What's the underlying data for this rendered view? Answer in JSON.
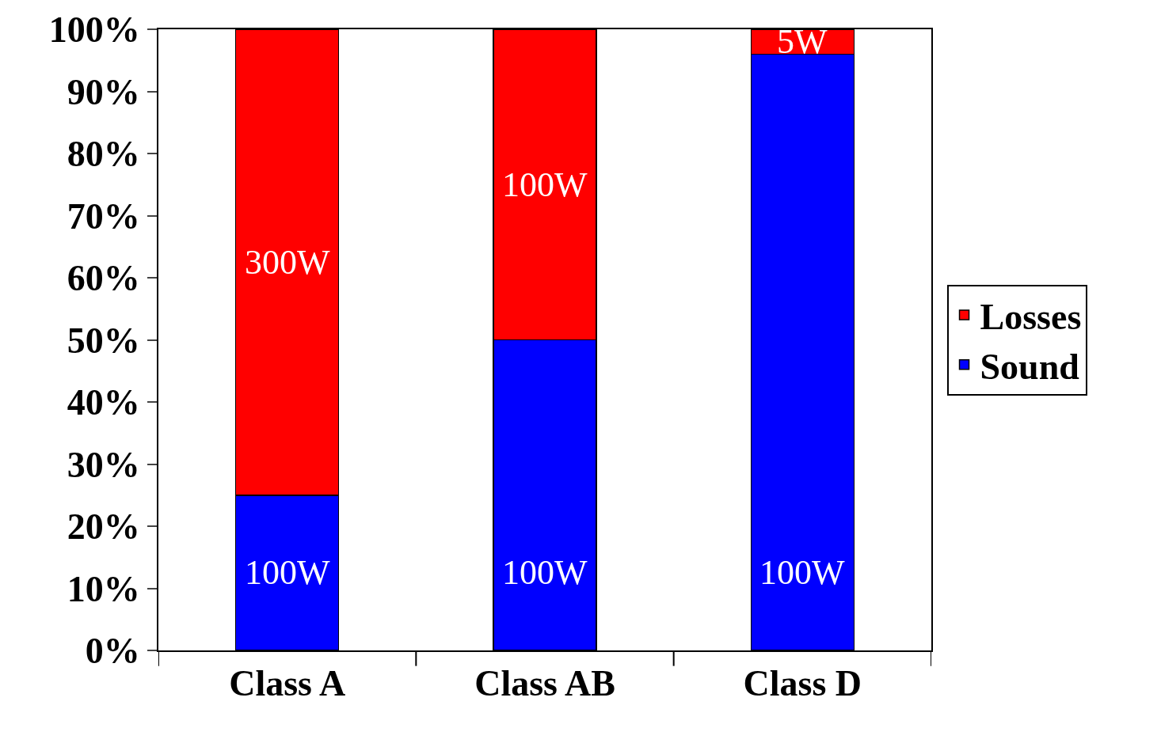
{
  "chart_data": {
    "type": "bar",
    "stacked": true,
    "categories": [
      "Class A",
      "Class AB",
      "Class D"
    ],
    "series": [
      {
        "name": "Sound",
        "color": "#0000ff",
        "values": [
          25,
          50,
          96
        ]
      },
      {
        "name": "Losses",
        "color": "#ff0000",
        "values": [
          75,
          50,
          4
        ]
      }
    ],
    "annotations": [
      "100W",
      "100W",
      "100W",
      "300W",
      "100W",
      "5W"
    ],
    "ylim": [
      0,
      100
    ],
    "yticks": [
      {
        "value": 0,
        "label": "0%"
      },
      {
        "value": 10,
        "label": "10%"
      },
      {
        "value": 20,
        "label": "20%"
      },
      {
        "value": 30,
        "label": "30%"
      },
      {
        "value": 40,
        "label": "40%"
      },
      {
        "value": 50,
        "label": "50%"
      },
      {
        "value": 60,
        "label": "60%"
      },
      {
        "value": 70,
        "label": "70%"
      },
      {
        "value": 80,
        "label": "80%"
      },
      {
        "value": 90,
        "label": "90%"
      },
      {
        "value": 100,
        "label": "100%"
      }
    ],
    "legend": "right"
  }
}
